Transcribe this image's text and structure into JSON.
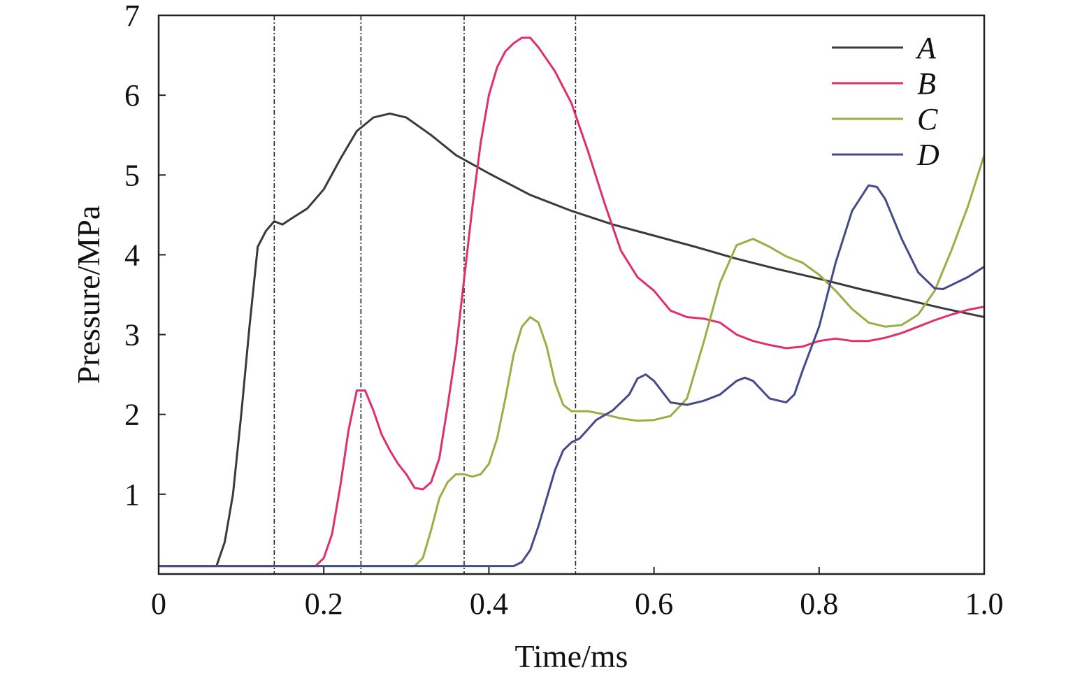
{
  "chart_data": {
    "type": "line",
    "title": "",
    "xlabel": "Time/ms",
    "ylabel": "Pressure/MPa",
    "xlim": [
      0,
      1.0
    ],
    "ylim": [
      0,
      7
    ],
    "xticks": [
      {
        "value": 0,
        "label": "0"
      },
      {
        "value": 0.2,
        "label": "0.2"
      },
      {
        "value": 0.4,
        "label": "0.4"
      },
      {
        "value": 0.6,
        "label": "0.6"
      },
      {
        "value": 0.8,
        "label": "0.8"
      },
      {
        "value": 1.0,
        "label": "1.0"
      }
    ],
    "yticks": [
      {
        "value": 1,
        "label": "1"
      },
      {
        "value": 2,
        "label": "2"
      },
      {
        "value": 3,
        "label": "3"
      },
      {
        "value": 4,
        "label": "4"
      },
      {
        "value": 5,
        "label": "5"
      },
      {
        "value": 6,
        "label": "6"
      },
      {
        "value": 7,
        "label": "7"
      }
    ],
    "grid": false,
    "legend_position": "top-right",
    "vlines": [
      0.14,
      0.245,
      0.37,
      0.505
    ],
    "series": [
      {
        "name": "A",
        "color": "#3a3a3a",
        "points": [
          [
            0,
            0.1
          ],
          [
            0.07,
            0.1
          ],
          [
            0.08,
            0.4
          ],
          [
            0.09,
            1.0
          ],
          [
            0.1,
            2.0
          ],
          [
            0.11,
            3.1
          ],
          [
            0.12,
            4.1
          ],
          [
            0.13,
            4.3
          ],
          [
            0.14,
            4.42
          ],
          [
            0.15,
            4.38
          ],
          [
            0.16,
            4.45
          ],
          [
            0.18,
            4.58
          ],
          [
            0.2,
            4.82
          ],
          [
            0.22,
            5.2
          ],
          [
            0.24,
            5.55
          ],
          [
            0.26,
            5.72
          ],
          [
            0.28,
            5.77
          ],
          [
            0.3,
            5.72
          ],
          [
            0.33,
            5.5
          ],
          [
            0.36,
            5.25
          ],
          [
            0.4,
            5.02
          ],
          [
            0.45,
            4.75
          ],
          [
            0.5,
            4.55
          ],
          [
            0.55,
            4.38
          ],
          [
            0.6,
            4.24
          ],
          [
            0.65,
            4.1
          ],
          [
            0.7,
            3.95
          ],
          [
            0.75,
            3.82
          ],
          [
            0.8,
            3.7
          ],
          [
            0.85,
            3.57
          ],
          [
            0.9,
            3.45
          ],
          [
            0.95,
            3.33
          ],
          [
            1.0,
            3.22
          ]
        ]
      },
      {
        "name": "B",
        "color": "#e0306a",
        "points": [
          [
            0,
            0.1
          ],
          [
            0.19,
            0.1
          ],
          [
            0.2,
            0.2
          ],
          [
            0.21,
            0.5
          ],
          [
            0.22,
            1.1
          ],
          [
            0.23,
            1.8
          ],
          [
            0.24,
            2.3
          ],
          [
            0.25,
            2.3
          ],
          [
            0.26,
            2.05
          ],
          [
            0.27,
            1.75
          ],
          [
            0.28,
            1.55
          ],
          [
            0.29,
            1.38
          ],
          [
            0.3,
            1.25
          ],
          [
            0.31,
            1.08
          ],
          [
            0.32,
            1.06
          ],
          [
            0.33,
            1.15
          ],
          [
            0.34,
            1.45
          ],
          [
            0.35,
            2.1
          ],
          [
            0.36,
            2.8
          ],
          [
            0.37,
            3.7
          ],
          [
            0.38,
            4.6
          ],
          [
            0.39,
            5.4
          ],
          [
            0.4,
            6.0
          ],
          [
            0.41,
            6.35
          ],
          [
            0.42,
            6.55
          ],
          [
            0.43,
            6.65
          ],
          [
            0.44,
            6.72
          ],
          [
            0.45,
            6.72
          ],
          [
            0.46,
            6.6
          ],
          [
            0.48,
            6.3
          ],
          [
            0.5,
            5.9
          ],
          [
            0.52,
            5.3
          ],
          [
            0.54,
            4.65
          ],
          [
            0.56,
            4.05
          ],
          [
            0.58,
            3.72
          ],
          [
            0.6,
            3.55
          ],
          [
            0.62,
            3.3
          ],
          [
            0.64,
            3.22
          ],
          [
            0.66,
            3.2
          ],
          [
            0.68,
            3.15
          ],
          [
            0.7,
            3.0
          ],
          [
            0.72,
            2.92
          ],
          [
            0.74,
            2.87
          ],
          [
            0.76,
            2.83
          ],
          [
            0.78,
            2.85
          ],
          [
            0.8,
            2.92
          ],
          [
            0.82,
            2.95
          ],
          [
            0.84,
            2.92
          ],
          [
            0.86,
            2.92
          ],
          [
            0.88,
            2.96
          ],
          [
            0.9,
            3.02
          ],
          [
            0.92,
            3.1
          ],
          [
            0.94,
            3.18
          ],
          [
            0.96,
            3.25
          ],
          [
            0.98,
            3.31
          ],
          [
            1.0,
            3.35
          ]
        ]
      },
      {
        "name": "C",
        "color": "#9aae45",
        "points": [
          [
            0,
            0.1
          ],
          [
            0.31,
            0.1
          ],
          [
            0.32,
            0.2
          ],
          [
            0.33,
            0.55
          ],
          [
            0.34,
            0.95
          ],
          [
            0.35,
            1.15
          ],
          [
            0.36,
            1.25
          ],
          [
            0.37,
            1.25
          ],
          [
            0.38,
            1.22
          ],
          [
            0.39,
            1.25
          ],
          [
            0.4,
            1.38
          ],
          [
            0.41,
            1.7
          ],
          [
            0.42,
            2.2
          ],
          [
            0.43,
            2.75
          ],
          [
            0.44,
            3.1
          ],
          [
            0.45,
            3.22
          ],
          [
            0.46,
            3.15
          ],
          [
            0.47,
            2.85
          ],
          [
            0.48,
            2.4
          ],
          [
            0.49,
            2.12
          ],
          [
            0.5,
            2.04
          ],
          [
            0.52,
            2.04
          ],
          [
            0.54,
            2.0
          ],
          [
            0.56,
            1.95
          ],
          [
            0.58,
            1.92
          ],
          [
            0.6,
            1.93
          ],
          [
            0.62,
            1.98
          ],
          [
            0.64,
            2.2
          ],
          [
            0.66,
            2.9
          ],
          [
            0.68,
            3.65
          ],
          [
            0.7,
            4.12
          ],
          [
            0.72,
            4.2
          ],
          [
            0.74,
            4.1
          ],
          [
            0.76,
            3.98
          ],
          [
            0.78,
            3.9
          ],
          [
            0.8,
            3.75
          ],
          [
            0.82,
            3.55
          ],
          [
            0.84,
            3.32
          ],
          [
            0.86,
            3.15
          ],
          [
            0.88,
            3.1
          ],
          [
            0.9,
            3.12
          ],
          [
            0.92,
            3.25
          ],
          [
            0.94,
            3.55
          ],
          [
            0.96,
            4.05
          ],
          [
            0.98,
            4.6
          ],
          [
            1.0,
            5.25
          ]
        ]
      },
      {
        "name": "D",
        "color": "#444a8a",
        "points": [
          [
            0,
            0.1
          ],
          [
            0.43,
            0.1
          ],
          [
            0.44,
            0.15
          ],
          [
            0.45,
            0.3
          ],
          [
            0.46,
            0.6
          ],
          [
            0.47,
            0.95
          ],
          [
            0.48,
            1.3
          ],
          [
            0.49,
            1.55
          ],
          [
            0.5,
            1.65
          ],
          [
            0.51,
            1.7
          ],
          [
            0.53,
            1.93
          ],
          [
            0.55,
            2.05
          ],
          [
            0.57,
            2.25
          ],
          [
            0.58,
            2.45
          ],
          [
            0.59,
            2.5
          ],
          [
            0.6,
            2.42
          ],
          [
            0.62,
            2.15
          ],
          [
            0.64,
            2.12
          ],
          [
            0.66,
            2.17
          ],
          [
            0.68,
            2.25
          ],
          [
            0.7,
            2.42
          ],
          [
            0.71,
            2.46
          ],
          [
            0.72,
            2.42
          ],
          [
            0.74,
            2.2
          ],
          [
            0.76,
            2.15
          ],
          [
            0.77,
            2.25
          ],
          [
            0.78,
            2.55
          ],
          [
            0.8,
            3.1
          ],
          [
            0.82,
            3.9
          ],
          [
            0.84,
            4.55
          ],
          [
            0.86,
            4.87
          ],
          [
            0.87,
            4.85
          ],
          [
            0.88,
            4.7
          ],
          [
            0.9,
            4.2
          ],
          [
            0.92,
            3.78
          ],
          [
            0.94,
            3.58
          ],
          [
            0.95,
            3.57
          ],
          [
            0.96,
            3.62
          ],
          [
            0.98,
            3.72
          ],
          [
            1.0,
            3.85
          ]
        ]
      }
    ]
  }
}
